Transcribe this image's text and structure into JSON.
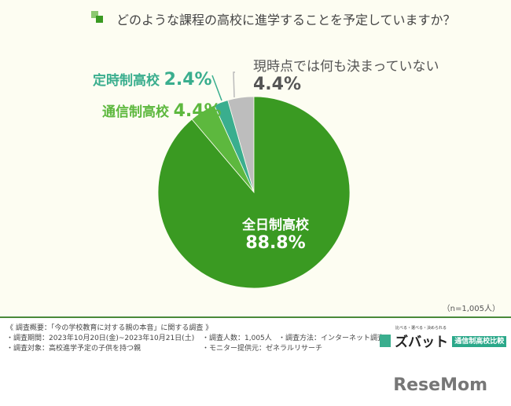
{
  "title": "どのような課程の高校に進学することを予定していますか？",
  "n_label": "（n=1,005人）",
  "chart_data": {
    "type": "pie",
    "title": "どのような課程の高校に進学することを予定していますか？",
    "slices": [
      {
        "label": "全日制高校",
        "value": 88.8,
        "display": "88.8%",
        "color": "#3a9a22"
      },
      {
        "label": "通信制高校",
        "value": 4.4,
        "display": "4.4%",
        "color": "#5db83e"
      },
      {
        "label": "定時制高校",
        "value": 2.4,
        "display": "2.4%",
        "color": "#3aae8e"
      },
      {
        "label": "現時点では何も決まっていない",
        "value": 4.4,
        "display": "4.4%",
        "color": "#bdbdbd"
      }
    ],
    "n": 1005
  },
  "footer": {
    "heading": "《 調査概要：「今の学校教育に対する親の本音」に関する調査 》",
    "period": "・調査期間：2023年10月20日(金)~2023年10月21日(土)",
    "count": "・調査人数：1,005人",
    "method": "・調査方法：インターネット調査",
    "target": "・調査対象：高校進学予定の子供を持つ親",
    "provider": "・モニター提供元：ゼネラルリサーチ"
  },
  "logo": {
    "tagline": "比べる・選べる・決められる",
    "name": "ズバット",
    "badge": "通信制高校比較"
  },
  "brand": "ReseMom"
}
